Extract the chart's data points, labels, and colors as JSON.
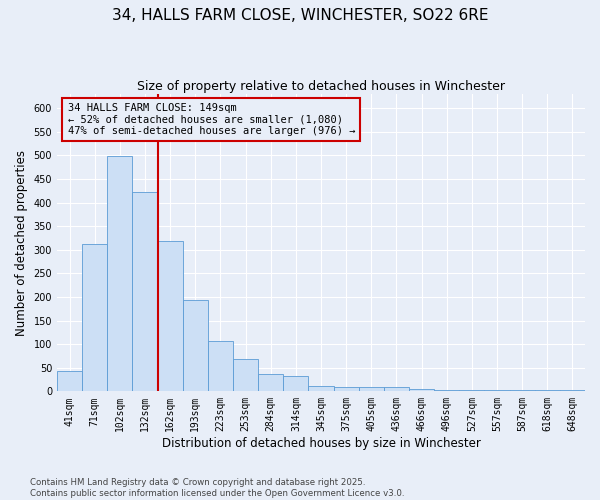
{
  "title_line1": "34, HALLS FARM CLOSE, WINCHESTER, SO22 6RE",
  "title_line2": "Size of property relative to detached houses in Winchester",
  "xlabel": "Distribution of detached houses by size in Winchester",
  "ylabel": "Number of detached properties",
  "categories": [
    "41sqm",
    "71sqm",
    "102sqm",
    "132sqm",
    "162sqm",
    "193sqm",
    "223sqm",
    "253sqm",
    "284sqm",
    "314sqm",
    "345sqm",
    "375sqm",
    "405sqm",
    "436sqm",
    "466sqm",
    "496sqm",
    "527sqm",
    "557sqm",
    "587sqm",
    "618sqm",
    "648sqm"
  ],
  "values": [
    44,
    313,
    498,
    422,
    318,
    194,
    106,
    69,
    37,
    32,
    12,
    10,
    10,
    10,
    5,
    3,
    2,
    2,
    2,
    2,
    2
  ],
  "bar_color": "#ccdff5",
  "bar_edge_color": "#5b9bd5",
  "background_color": "#e8eef8",
  "grid_color": "#ffffff",
  "vline_x": 3.5,
  "vline_color": "#cc0000",
  "annotation_text": "34 HALLS FARM CLOSE: 149sqm\n← 52% of detached houses are smaller (1,080)\n47% of semi-detached houses are larger (976) →",
  "annotation_box_color": "#cc0000",
  "ylim": [
    0,
    630
  ],
  "yticks": [
    0,
    50,
    100,
    150,
    200,
    250,
    300,
    350,
    400,
    450,
    500,
    550,
    600
  ],
  "footer": "Contains HM Land Registry data © Crown copyright and database right 2025.\nContains public sector information licensed under the Open Government Licence v3.0.",
  "title_fontsize": 11,
  "subtitle_fontsize": 9,
  "tick_fontsize": 7,
  "label_fontsize": 8.5
}
